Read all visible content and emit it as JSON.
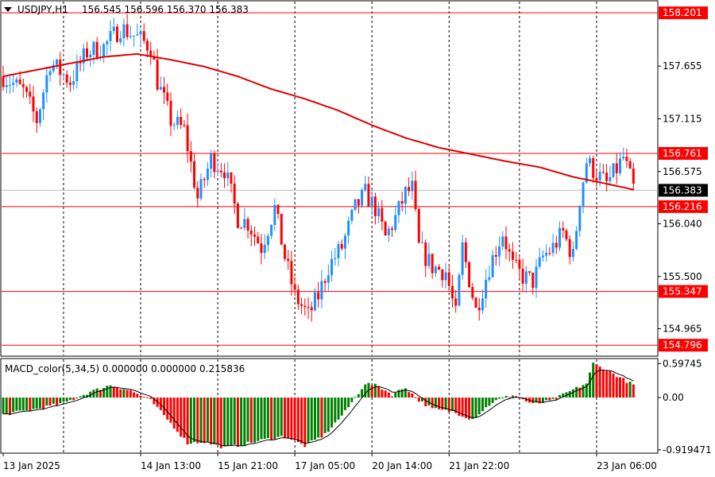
{
  "header": {
    "menu_icon": "triangle-down-icon",
    "symbol": "USDJPY,H1",
    "ohlc": "156.545 156.596 156.370 156.383"
  },
  "macd_header": "MACD_color(5,34,5) 0.000000 0.000000 0.215836",
  "colors": {
    "bull": "#1e90ff",
    "bear": "#ff0000",
    "ma": "#dd0000",
    "level_line": "#ff0000",
    "level_bg": "#ff0000",
    "current_bg": "#000000",
    "hist_up": "#ff0000",
    "hist_down": "#008000",
    "signal": "#000000",
    "grid": "#000000"
  },
  "chart_data": [
    {
      "type": "candlestick",
      "symbol": "USDJPY",
      "timeframe": "H1",
      "ylim": [
        154.7,
        158.3
      ],
      "price_ticks": [
        "157.655",
        "157.115",
        "156.575",
        "156.040",
        "155.500",
        "154.965"
      ],
      "current_price": "156.383",
      "levels": [
        "158.201",
        "156.761",
        "156.216",
        "155.347",
        "154.796"
      ],
      "x_ticks": [
        "13 Jan 2025",
        "14 Jan 13:00",
        "15 Jan 21:00",
        "17 Jan 05:00",
        "20 Jan 14:00",
        "21 Jan 22:00",
        "23 Jan 06:00"
      ],
      "anchors": [
        [
          0,
          157.55
        ],
        [
          6,
          157.4
        ],
        [
          10,
          157.1
        ],
        [
          14,
          157.7
        ],
        [
          20,
          157.5
        ],
        [
          25,
          157.8
        ],
        [
          30,
          157.85
        ],
        [
          35,
          158.05
        ],
        [
          40,
          157.95
        ],
        [
          44,
          157.85
        ],
        [
          46,
          157.5
        ],
        [
          50,
          157.1
        ],
        [
          54,
          157.0
        ],
        [
          58,
          156.3
        ],
        [
          62,
          156.7
        ],
        [
          66,
          156.6
        ],
        [
          70,
          156.1
        ],
        [
          73,
          156.05
        ],
        [
          77,
          155.8
        ],
        [
          81,
          156.2
        ],
        [
          84,
          155.7
        ],
        [
          87,
          155.3
        ],
        [
          91,
          155.1
        ],
        [
          94,
          155.3
        ],
        [
          97,
          155.6
        ],
        [
          101,
          155.8
        ],
        [
          105,
          156.2
        ],
        [
          108,
          156.35
        ],
        [
          111,
          156.2
        ],
        [
          114,
          155.9
        ],
        [
          117,
          156.1
        ],
        [
          120,
          156.35
        ],
        [
          122,
          156.4
        ],
        [
          124,
          155.8
        ],
        [
          128,
          155.6
        ],
        [
          132,
          155.55
        ],
        [
          135,
          155.1
        ],
        [
          137,
          155.8
        ],
        [
          141,
          155.15
        ],
        [
          145,
          155.6
        ],
        [
          149,
          155.95
        ],
        [
          152,
          155.6
        ],
        [
          155,
          155.5
        ],
        [
          158,
          155.45
        ],
        [
          161,
          155.7
        ],
        [
          164,
          155.8
        ],
        [
          167,
          155.95
        ],
        [
          170,
          155.7
        ],
        [
          172,
          156.3
        ],
        [
          174,
          156.68
        ],
        [
          177,
          156.55
        ],
        [
          180,
          156.45
        ],
        [
          183,
          156.6
        ],
        [
          185,
          156.72
        ],
        [
          188,
          156.4
        ]
      ],
      "ma_anchors": [
        [
          0,
          157.55
        ],
        [
          30,
          157.75
        ],
        [
          40,
          157.78
        ],
        [
          50,
          157.72
        ],
        [
          60,
          157.65
        ],
        [
          70,
          157.55
        ],
        [
          80,
          157.42
        ],
        [
          90,
          157.32
        ],
        [
          100,
          157.2
        ],
        [
          110,
          157.05
        ],
        [
          120,
          156.92
        ],
        [
          130,
          156.82
        ],
        [
          140,
          156.75
        ],
        [
          150,
          156.68
        ],
        [
          160,
          156.62
        ],
        [
          170,
          156.52
        ],
        [
          180,
          156.45
        ],
        [
          188,
          156.39
        ]
      ]
    },
    {
      "type": "macd_histogram",
      "name": "MACD_color(5,34,5)",
      "ylim": [
        -0.95,
        0.63
      ],
      "ticks": [
        "0.59745",
        "0.00",
        "-0.919471"
      ],
      "hist_anchors": [
        [
          0,
          -0.3
        ],
        [
          10,
          -0.2
        ],
        [
          18,
          -0.1
        ],
        [
          26,
          0.1
        ],
        [
          32,
          0.22
        ],
        [
          38,
          0.12
        ],
        [
          44,
          -0.05
        ],
        [
          50,
          -0.45
        ],
        [
          55,
          -0.8
        ],
        [
          60,
          -0.78
        ],
        [
          66,
          -0.88
        ],
        [
          72,
          -0.82
        ],
        [
          78,
          -0.74
        ],
        [
          84,
          -0.68
        ],
        [
          90,
          -0.85
        ],
        [
          96,
          -0.65
        ],
        [
          102,
          -0.25
        ],
        [
          108,
          0.25
        ],
        [
          112,
          0.2
        ],
        [
          116,
          0.05
        ],
        [
          120,
          0.18
        ],
        [
          124,
          -0.05
        ],
        [
          128,
          -0.2
        ],
        [
          134,
          -0.25
        ],
        [
          140,
          -0.38
        ],
        [
          146,
          -0.08
        ],
        [
          152,
          0.05
        ],
        [
          158,
          -0.12
        ],
        [
          164,
          -0.05
        ],
        [
          168,
          0.08
        ],
        [
          174,
          0.25
        ],
        [
          176,
          0.6
        ],
        [
          182,
          0.42
        ],
        [
          188,
          0.22
        ]
      ]
    }
  ]
}
